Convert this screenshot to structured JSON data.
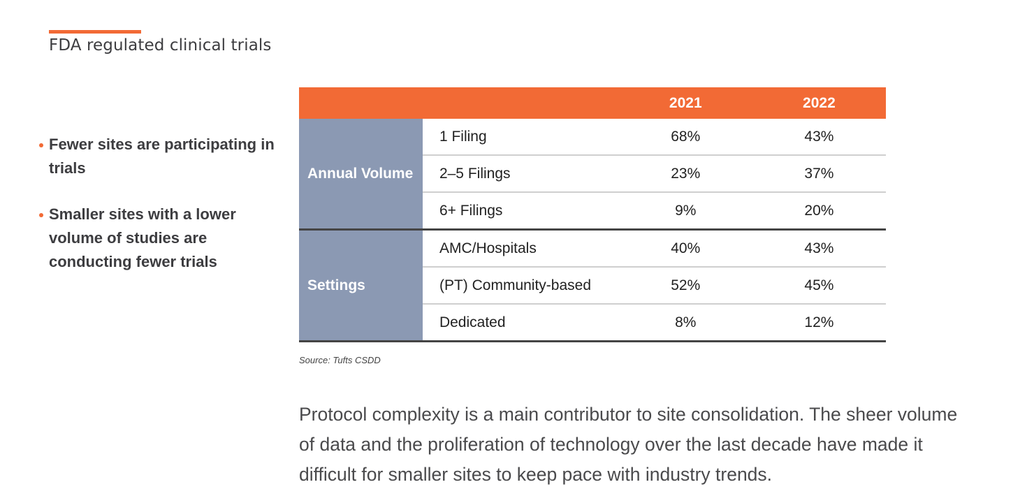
{
  "header": {
    "title": "FDA regulated clinical trials",
    "accent_color": "#f26a35"
  },
  "bullets": [
    {
      "text": "Fewer sites are participating in trials"
    },
    {
      "text": "Smaller sites with a lower volume of studies are conducting fewer trials"
    }
  ],
  "table": {
    "columns": [
      "",
      "",
      "2021",
      "2022"
    ],
    "groups": [
      {
        "label": "Annual Volume",
        "rows": [
          {
            "label": "1 Filing",
            "y2021": "68%",
            "y2022": "43%"
          },
          {
            "label": "2–5 Filings",
            "y2021": "23%",
            "y2022": "37%"
          },
          {
            "label": "6+ Filings",
            "y2021": "9%",
            "y2022": "20%"
          }
        ]
      },
      {
        "label": "Settings",
        "rows": [
          {
            "label": "AMC/Hospitals",
            "y2021": "40%",
            "y2022": "43%"
          },
          {
            "label": "(PT) Community-based",
            "y2021": "52%",
            "y2022": "45%"
          },
          {
            "label": "Dedicated",
            "y2021": "8%",
            "y2022": "12%"
          }
        ]
      }
    ],
    "header_color": "#f26a35",
    "group_color": "#8b99b3"
  },
  "source": "Source: Tufts CSDD",
  "body_text": "Protocol complexity is a main contributor to site consolidation. The sheer volume of data and the proliferation of technology over the last decade have made it difficult for smaller sites to keep pace with industry trends."
}
